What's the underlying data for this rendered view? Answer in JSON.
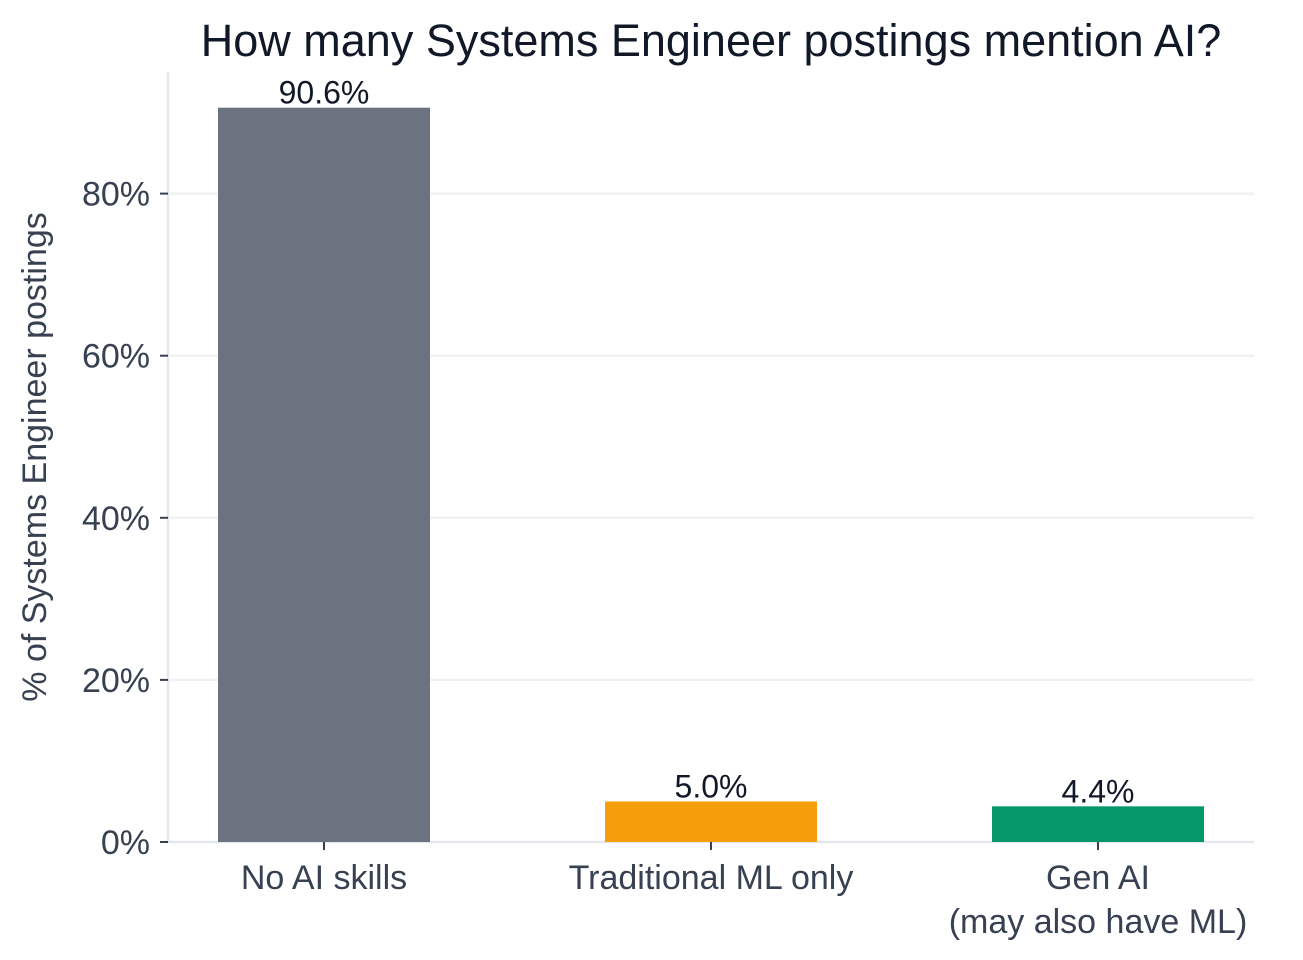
{
  "chart_data": {
    "type": "bar",
    "title": "How many Systems Engineer postings mention AI?",
    "xlabel": "",
    "ylabel": "% of Systems Engineer postings",
    "categories": [
      [
        "No AI skills"
      ],
      [
        "Traditional ML only"
      ],
      [
        "Gen AI",
        "(may also have ML)"
      ]
    ],
    "values": [
      90.6,
      5.0,
      4.4
    ],
    "data_labels": [
      "90.6%",
      "5.0%",
      "4.4%"
    ],
    "colors": [
      "#6b7280",
      "#f59e0b",
      "#059669"
    ],
    "ylim": [
      0,
      95
    ],
    "yticks": [
      0,
      20,
      40,
      60,
      80
    ],
    "ytick_labels": [
      "0%",
      "20%",
      "40%",
      "60%",
      "80%"
    ],
    "grid": "horizontal",
    "legend": "none"
  }
}
